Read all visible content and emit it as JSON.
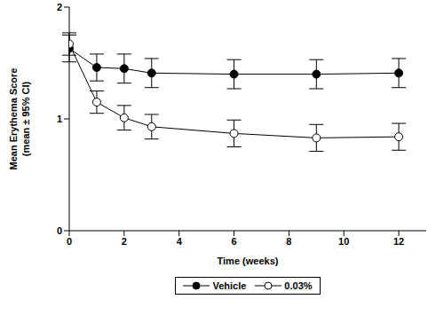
{
  "chart_data": {
    "type": "line",
    "x_label": "Time (weeks)",
    "y_label": [
      "Mean Erythema Score",
      "(mean ± 95% CI)"
    ],
    "x": [
      0,
      1,
      2,
      3,
      6,
      9,
      12
    ],
    "xlim": [
      0,
      13
    ],
    "xticks": [
      0,
      2,
      4,
      6,
      8,
      10,
      12
    ],
    "ylim": [
      0,
      2
    ],
    "yticks": [
      0,
      1,
      2
    ],
    "grid": false,
    "legend": "bottom",
    "series": [
      {
        "name": "Vehicle",
        "color": "#000000",
        "marker": "circle",
        "values": [
          1.63,
          1.46,
          1.45,
          1.41,
          1.4,
          1.4,
          1.41
        ],
        "ci95": [
          0.12,
          0.12,
          0.13,
          0.13,
          0.13,
          0.13,
          0.13
        ]
      },
      {
        "name": "0.03%",
        "color": "#000000",
        "marker": "open_circle",
        "values": [
          1.67,
          1.15,
          1.01,
          0.93,
          0.87,
          0.83,
          0.84
        ],
        "ci95": [
          0.1,
          0.1,
          0.11,
          0.11,
          0.12,
          0.12,
          0.12
        ]
      }
    ]
  }
}
